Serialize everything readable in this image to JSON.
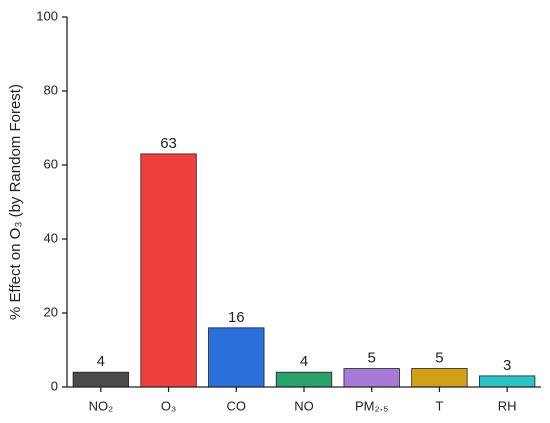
{
  "chart_data": {
    "type": "bar",
    "ylabel": "% Effect on O₃ (by Random Forest)",
    "categories": [
      "NO₂",
      "O₃",
      "CO",
      "NO",
      "PM₂.₅",
      "T",
      "RH"
    ],
    "values": [
      4,
      63,
      16,
      4,
      5,
      5,
      3
    ],
    "colors": [
      "#4a4a4a",
      "#f0403e",
      "#2a6fdb",
      "#2aa06a",
      "#a87ad8",
      "#d4a017",
      "#2ac4c8"
    ],
    "ylim": [
      0,
      100
    ],
    "yticks": [
      0,
      20,
      40,
      60,
      80,
      100
    ],
    "grid": false
  }
}
